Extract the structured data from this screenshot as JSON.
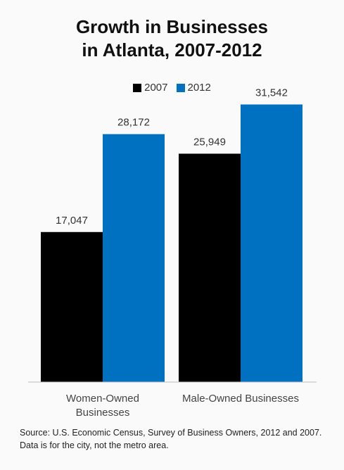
{
  "chart_data": {
    "type": "bar",
    "title_lines": [
      "Growth in Businesses",
      "in Atlanta, 2007-2012"
    ],
    "categories": [
      "Women-Owned Businesses",
      "Male-Owned Businesses"
    ],
    "category_label_lines": [
      [
        "Women-Owned",
        "Businesses"
      ],
      [
        "Male-Owned Businesses"
      ]
    ],
    "series": [
      {
        "name": "2007",
        "color": "#000000",
        "values": [
          17047,
          25949
        ],
        "labels": [
          "17,047",
          "25,949"
        ]
      },
      {
        "name": "2012",
        "color": "#0070c0",
        "values": [
          28172,
          31542
        ],
        "labels": [
          "28,172",
          "31,542"
        ]
      }
    ],
    "ylim": [
      0,
      33500
    ],
    "axis_color": "#bfbfbf",
    "legend_position": "top-center",
    "grid": false
  },
  "source": "Source: U.S. Economic Census, Survey of Business Owners, 2012 and 2007. Data is for the city, not the metro area."
}
